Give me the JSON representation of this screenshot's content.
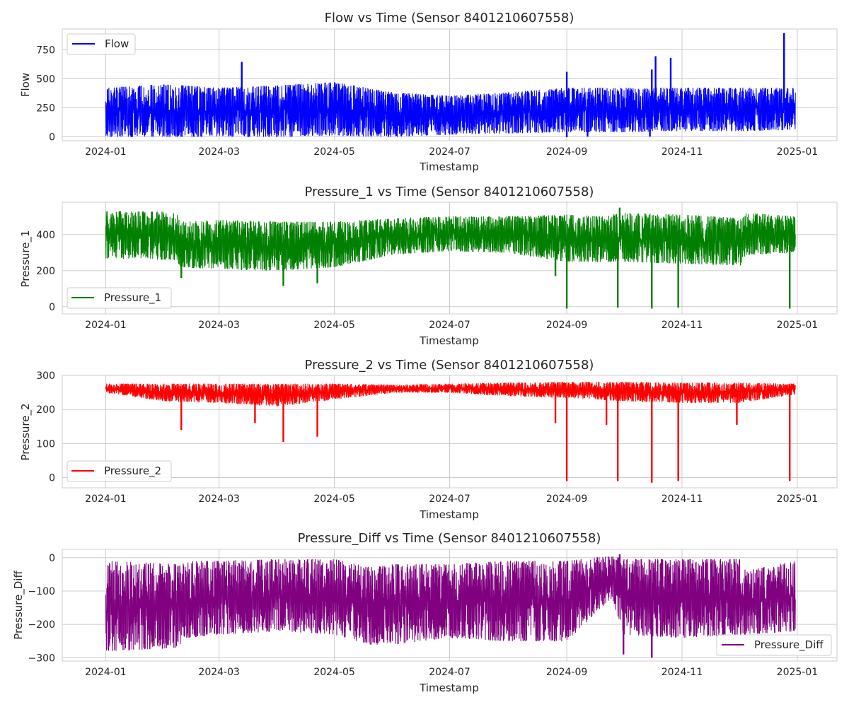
{
  "chart_data": [
    {
      "type": "line",
      "title": "Flow vs Time (Sensor 8401210607558)",
      "xlabel": "Timestamp",
      "ylabel": "Flow",
      "x_ticks": [
        "2024-01",
        "2024-03",
        "2024-05",
        "2024-07",
        "2024-09",
        "2024-11",
        "2025-01"
      ],
      "y_ticks": [
        0,
        250,
        500,
        750
      ],
      "xlim": [
        "2023-12-09",
        "2025-01-22"
      ],
      "ylim": [
        -35,
        930
      ],
      "grid": true,
      "legend_loc": "upper left",
      "series": [
        {
          "name": "Flow",
          "color": "#0000ff"
        }
      ],
      "envelope": [
        {
          "t": "2024-01-01",
          "lo": 0,
          "hi": 420
        },
        {
          "t": "2024-02-01",
          "lo": 0,
          "hi": 450
        },
        {
          "t": "2024-03-01",
          "lo": 0,
          "hi": 420
        },
        {
          "t": "2024-04-01",
          "lo": 0,
          "hi": 440
        },
        {
          "t": "2024-05-01",
          "lo": 10,
          "hi": 470
        },
        {
          "t": "2024-06-01",
          "lo": 0,
          "hi": 380
        },
        {
          "t": "2024-07-01",
          "lo": 20,
          "hi": 350
        },
        {
          "t": "2024-08-01",
          "lo": 30,
          "hi": 380
        },
        {
          "t": "2024-09-01",
          "lo": 40,
          "hi": 420
        },
        {
          "t": "2024-10-01",
          "lo": 40,
          "hi": 420
        },
        {
          "t": "2024-11-01",
          "lo": 50,
          "hi": 420
        },
        {
          "t": "2024-12-01",
          "lo": 50,
          "hi": 420
        },
        {
          "t": "2024-12-31",
          "lo": 60,
          "hi": 420
        }
      ],
      "spikes": [
        {
          "t": "2024-03-13",
          "y": 645
        },
        {
          "t": "2024-09-01",
          "y": 560
        },
        {
          "t": "2024-10-16",
          "y": 580
        },
        {
          "t": "2024-10-18",
          "y": 695
        },
        {
          "t": "2024-10-26",
          "y": 680
        },
        {
          "t": "2024-12-25",
          "y": 895
        }
      ],
      "dips": [
        {
          "t": "2024-09-01",
          "y": -5
        },
        {
          "t": "2024-09-12",
          "y": 0
        },
        {
          "t": "2024-10-15",
          "y": 0
        }
      ]
    },
    {
      "type": "line",
      "title": "Pressure_1 vs Time (Sensor 8401210607558)",
      "xlabel": "Timestamp",
      "ylabel": "Pressure_1",
      "x_ticks": [
        "2024-01",
        "2024-03",
        "2024-05",
        "2024-07",
        "2024-09",
        "2024-11",
        "2025-01"
      ],
      "y_ticks": [
        0,
        200,
        400
      ],
      "xlim": [
        "2023-12-09",
        "2025-01-22"
      ],
      "ylim": [
        -40,
        580
      ],
      "grid": true,
      "legend_loc": "lower left",
      "series": [
        {
          "name": "Pressure_1",
          "color": "#008000"
        }
      ],
      "envelope": [
        {
          "t": "2024-01-01",
          "lo": 270,
          "hi": 530
        },
        {
          "t": "2024-02-07",
          "lo": 260,
          "hi": 525
        },
        {
          "t": "2024-02-10",
          "lo": 220,
          "hi": 470
        },
        {
          "t": "2024-03-01",
          "lo": 210,
          "hi": 480
        },
        {
          "t": "2024-04-01",
          "lo": 200,
          "hi": 470
        },
        {
          "t": "2024-05-01",
          "lo": 220,
          "hi": 470
        },
        {
          "t": "2024-06-01",
          "lo": 290,
          "hi": 490
        },
        {
          "t": "2024-07-01",
          "lo": 310,
          "hi": 500
        },
        {
          "t": "2024-08-01",
          "lo": 300,
          "hi": 500
        },
        {
          "t": "2024-09-01",
          "lo": 250,
          "hi": 510
        },
        {
          "t": "2024-09-20",
          "lo": 250,
          "hi": 500
        },
        {
          "t": "2024-10-01",
          "lo": 250,
          "hi": 520
        },
        {
          "t": "2024-11-01",
          "lo": 240,
          "hi": 510
        },
        {
          "t": "2024-12-02",
          "lo": 230,
          "hi": 490
        },
        {
          "t": "2024-12-05",
          "lo": 290,
          "hi": 520
        },
        {
          "t": "2024-12-31",
          "lo": 300,
          "hi": 500
        }
      ],
      "spikes": [
        {
          "t": "2024-09-29",
          "y": 550
        }
      ],
      "dips": [
        {
          "t": "2024-02-10",
          "y": 160
        },
        {
          "t": "2024-04-04",
          "y": 115
        },
        {
          "t": "2024-04-22",
          "y": 130
        },
        {
          "t": "2024-08-26",
          "y": 170
        },
        {
          "t": "2024-09-01",
          "y": -10
        },
        {
          "t": "2024-09-28",
          "y": -5
        },
        {
          "t": "2024-10-16",
          "y": -10
        },
        {
          "t": "2024-10-30",
          "y": -5
        },
        {
          "t": "2024-12-28",
          "y": -10
        }
      ]
    },
    {
      "type": "line",
      "title": "Pressure_2 vs Time (Sensor 8401210607558)",
      "xlabel": "Timestamp",
      "ylabel": "Pressure_2",
      "x_ticks": [
        "2024-01",
        "2024-03",
        "2024-05",
        "2024-07",
        "2024-09",
        "2024-11",
        "2025-01"
      ],
      "y_ticks": [
        0,
        100,
        200,
        300
      ],
      "xlim": [
        "2023-12-09",
        "2025-01-22"
      ],
      "ylim": [
        -30,
        300
      ],
      "grid": true,
      "legend_loc": "lower left",
      "series": [
        {
          "name": "Pressure_2",
          "color": "#ff0000"
        }
      ],
      "envelope": [
        {
          "t": "2024-01-01",
          "lo": 250,
          "hi": 275
        },
        {
          "t": "2024-02-01",
          "lo": 225,
          "hi": 275
        },
        {
          "t": "2024-03-01",
          "lo": 220,
          "hi": 275
        },
        {
          "t": "2024-04-01",
          "lo": 210,
          "hi": 275
        },
        {
          "t": "2024-05-01",
          "lo": 230,
          "hi": 275
        },
        {
          "t": "2024-06-01",
          "lo": 250,
          "hi": 272
        },
        {
          "t": "2024-07-01",
          "lo": 250,
          "hi": 275
        },
        {
          "t": "2024-08-01",
          "lo": 240,
          "hi": 278
        },
        {
          "t": "2024-09-01",
          "lo": 235,
          "hi": 280
        },
        {
          "t": "2024-10-01",
          "lo": 225,
          "hi": 280
        },
        {
          "t": "2024-11-01",
          "lo": 220,
          "hi": 278
        },
        {
          "t": "2024-12-01",
          "lo": 220,
          "hi": 278
        },
        {
          "t": "2024-12-31",
          "lo": 245,
          "hi": 275
        }
      ],
      "spikes": [],
      "dips": [
        {
          "t": "2024-02-10",
          "y": 140
        },
        {
          "t": "2024-03-20",
          "y": 160
        },
        {
          "t": "2024-04-04",
          "y": 105
        },
        {
          "t": "2024-04-22",
          "y": 120
        },
        {
          "t": "2024-08-26",
          "y": 160
        },
        {
          "t": "2024-09-01",
          "y": -10
        },
        {
          "t": "2024-09-22",
          "y": 155
        },
        {
          "t": "2024-09-28",
          "y": -10
        },
        {
          "t": "2024-10-16",
          "y": -15
        },
        {
          "t": "2024-10-30",
          "y": -10
        },
        {
          "t": "2024-11-30",
          "y": 155
        },
        {
          "t": "2024-12-28",
          "y": -10
        }
      ]
    },
    {
      "type": "line",
      "title": "Pressure_Diff vs Time (Sensor 8401210607558)",
      "xlabel": "Timestamp",
      "ylabel": "Pressure_Diff",
      "x_ticks": [
        "2024-01",
        "2024-03",
        "2024-05",
        "2024-07",
        "2024-09",
        "2024-11",
        "2025-01"
      ],
      "y_ticks": [
        -300,
        -200,
        -100,
        0
      ],
      "xlim": [
        "2023-12-09",
        "2025-01-22"
      ],
      "ylim": [
        -310,
        25
      ],
      "grid": true,
      "legend_loc": "lower right",
      "series": [
        {
          "name": "Pressure_Diff",
          "color": "#800080"
        }
      ],
      "envelope": [
        {
          "t": "2024-01-01",
          "lo": -280,
          "hi": -10
        },
        {
          "t": "2024-02-08",
          "lo": -270,
          "hi": -20
        },
        {
          "t": "2024-02-12",
          "lo": -240,
          "hi": -10
        },
        {
          "t": "2024-03-01",
          "lo": -230,
          "hi": -10
        },
        {
          "t": "2024-04-01",
          "lo": -220,
          "hi": -5
        },
        {
          "t": "2024-05-01",
          "lo": -230,
          "hi": -5
        },
        {
          "t": "2024-05-20",
          "lo": -260,
          "hi": -30
        },
        {
          "t": "2024-06-01",
          "lo": -260,
          "hi": -20
        },
        {
          "t": "2024-07-01",
          "lo": -240,
          "hi": -20
        },
        {
          "t": "2024-08-01",
          "lo": -250,
          "hi": -10
        },
        {
          "t": "2024-09-01",
          "lo": -250,
          "hi": -10
        },
        {
          "t": "2024-09-25",
          "lo": -120,
          "hi": 5
        },
        {
          "t": "2024-10-01",
          "lo": -230,
          "hi": -5
        },
        {
          "t": "2024-11-01",
          "lo": -240,
          "hi": -5
        },
        {
          "t": "2024-12-02",
          "lo": -230,
          "hi": -5
        },
        {
          "t": "2024-12-05",
          "lo": -230,
          "hi": -40
        },
        {
          "t": "2024-12-31",
          "lo": -220,
          "hi": -10
        }
      ],
      "spikes": [
        {
          "t": "2024-09-29",
          "y": 10
        }
      ],
      "dips": [
        {
          "t": "2024-10-16",
          "y": -300
        },
        {
          "t": "2024-10-01",
          "y": -290
        }
      ]
    }
  ]
}
